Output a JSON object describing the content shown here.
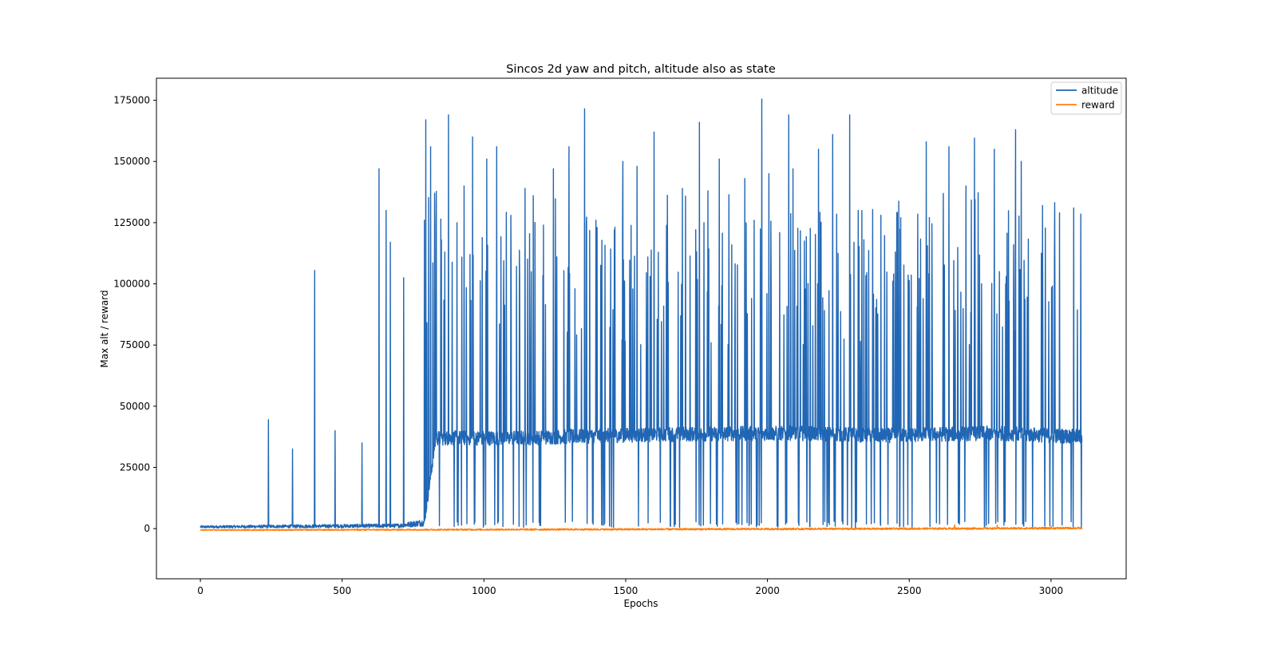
{
  "chart_data": {
    "type": "line",
    "title": "Sincos 2d yaw and pitch, altitude also as state",
    "xlabel": "Epochs",
    "ylabel": "Max alt / reward",
    "xlim": [
      -155,
      3265
    ],
    "ylim": [
      -20500,
      184000
    ],
    "xticks": [
      0,
      500,
      1000,
      1500,
      2000,
      2500,
      3000
    ],
    "yticks": [
      0,
      25000,
      50000,
      75000,
      100000,
      125000,
      150000,
      175000
    ],
    "grid": false,
    "legend_position": "top-right",
    "n_epochs": 3110,
    "series": [
      {
        "name": "altitude",
        "color": "#2066b4",
        "baseline_profile": [
          {
            "x": 0,
            "y": 700,
            "noise": 500
          },
          {
            "x": 700,
            "y": 1200,
            "noise": 800
          },
          {
            "x": 790,
            "y": 2500,
            "noise": 1500
          },
          {
            "x": 830,
            "y": 37000,
            "noise": 3000
          },
          {
            "x": 1100,
            "y": 37000,
            "noise": 3000
          },
          {
            "x": 1600,
            "y": 38500,
            "noise": 3000
          },
          {
            "x": 2100,
            "y": 39000,
            "noise": 3000
          },
          {
            "x": 2400,
            "y": 38000,
            "noise": 3000
          },
          {
            "x": 2800,
            "y": 39000,
            "noise": 3000
          },
          {
            "x": 3110,
            "y": 37500,
            "noise": 3000
          }
        ],
        "peaks": [
          [
            240,
            44500
          ],
          [
            325,
            32500
          ],
          [
            403,
            105500
          ],
          [
            475,
            40000
          ],
          [
            570,
            35000
          ],
          [
            630,
            147000
          ],
          [
            655,
            130000
          ],
          [
            670,
            117000
          ],
          [
            717,
            102500
          ],
          [
            790,
            126000
          ],
          [
            795,
            167000
          ],
          [
            812,
            156000
          ],
          [
            826,
            137000
          ],
          [
            850,
            118000
          ],
          [
            875,
            169000
          ],
          [
            905,
            125000
          ],
          [
            930,
            140000
          ],
          [
            960,
            160000
          ],
          [
            1010,
            151000
          ],
          [
            1045,
            156000
          ],
          [
            1095,
            128000
          ],
          [
            1145,
            139000
          ],
          [
            1210,
            124000
          ],
          [
            1245,
            147000
          ],
          [
            1300,
            156000
          ],
          [
            1355,
            171500
          ],
          [
            1395,
            126000
          ],
          [
            1460,
            122000
          ],
          [
            1490,
            150000
          ],
          [
            1540,
            148000
          ],
          [
            1600,
            162000
          ],
          [
            1700,
            139000
          ],
          [
            1760,
            166000
          ],
          [
            1790,
            138000
          ],
          [
            1830,
            151000
          ],
          [
            1920,
            143000
          ],
          [
            1980,
            175500
          ],
          [
            2005,
            145000
          ],
          [
            2075,
            169000
          ],
          [
            2090,
            147000
          ],
          [
            2180,
            155000
          ],
          [
            2230,
            161000
          ],
          [
            2290,
            169000
          ],
          [
            2320,
            130000
          ],
          [
            2400,
            128000
          ],
          [
            2470,
            127000
          ],
          [
            2560,
            158000
          ],
          [
            2640,
            156000
          ],
          [
            2700,
            140000
          ],
          [
            2730,
            159500
          ],
          [
            2800,
            155000
          ],
          [
            2875,
            163000
          ],
          [
            2895,
            150000
          ],
          [
            2970,
            132000
          ],
          [
            3030,
            129000
          ],
          [
            3080,
            131000
          ],
          [
            3105,
            128500
          ]
        ],
        "dips": [
          [
            1140,
            500
          ],
          [
            1450,
            700
          ],
          [
            1690,
            600
          ],
          [
            2150,
            800
          ],
          [
            2210,
            900
          ],
          [
            2297,
            500
          ],
          [
            2310,
            400
          ],
          [
            2400,
            600
          ],
          [
            2480,
            800
          ],
          [
            2510,
            700
          ]
        ]
      },
      {
        "name": "reward",
        "color": "#ff7f0e",
        "baseline_profile": [
          {
            "x": 0,
            "y": -600,
            "noise": 200
          },
          {
            "x": 1500,
            "y": -300,
            "noise": 350
          },
          {
            "x": 2600,
            "y": 0,
            "noise": 350
          },
          {
            "x": 3110,
            "y": 200,
            "noise": 400
          }
        ],
        "peaks": [
          [
            2660,
            1500
          ],
          [
            2810,
            1400
          ],
          [
            3000,
            1000
          ]
        ],
        "dips": []
      }
    ]
  }
}
